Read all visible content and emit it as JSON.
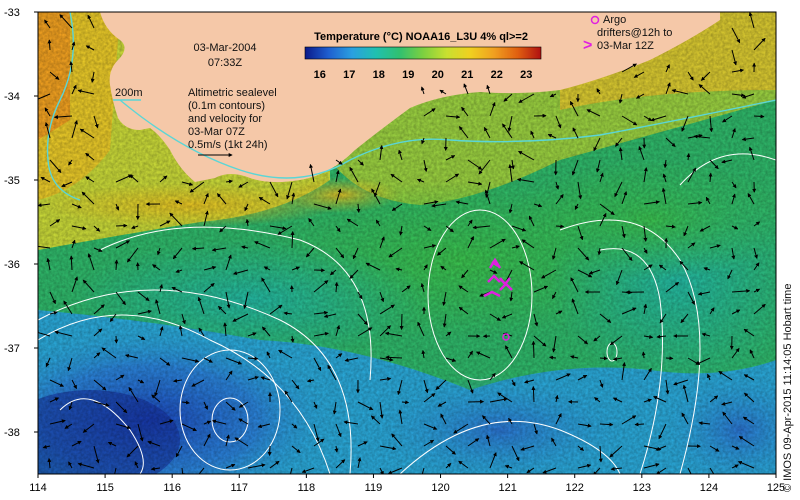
{
  "map": {
    "date": "03-Mar-2004",
    "time": "07:33Z",
    "lon_ticks": [
      "114",
      "115",
      "116",
      "117",
      "118",
      "119",
      "120",
      "121",
      "122",
      "123",
      "124",
      "125"
    ],
    "lat_ticks": [
      "-33",
      "-34",
      "-35",
      "-36",
      "-37",
      "-38"
    ],
    "lon_range": [
      114,
      125
    ],
    "lat_range": [
      -38.5,
      -33
    ]
  },
  "colorbar": {
    "title": "Temperature (°C) NOAA16_L3U 4% ql>=2",
    "ticks": [
      "16",
      "17",
      "18",
      "19",
      "20",
      "21",
      "22",
      "23"
    ],
    "range": [
      15.5,
      23.5
    ],
    "colors": [
      "#0a1a8a",
      "#1f5fd0",
      "#2aa0e0",
      "#20c0b0",
      "#30c070",
      "#7cd040",
      "#c8e030",
      "#f0d020",
      "#f0a020",
      "#e06010",
      "#b01010"
    ]
  },
  "legend": {
    "contour_label": "200m",
    "altimetry_lines": [
      "Altimetric sealevel",
      "(0.1m contours)",
      "and velocity for",
      "03-Mar 07Z",
      "0.5m/s (1kt 24h)"
    ],
    "argo_lines": [
      "Argo",
      "drifters@12h to",
      "03-Mar 12Z"
    ],
    "argo_symbol": ">"
  },
  "credit": "© IMOS 09-Apr-2015 11:14:05 Hobart time",
  "colors": {
    "land": "#f5c8a8",
    "contour": "#5bd6d6",
    "drifter": "#e020e0",
    "sealevel": "#ffffff"
  }
}
